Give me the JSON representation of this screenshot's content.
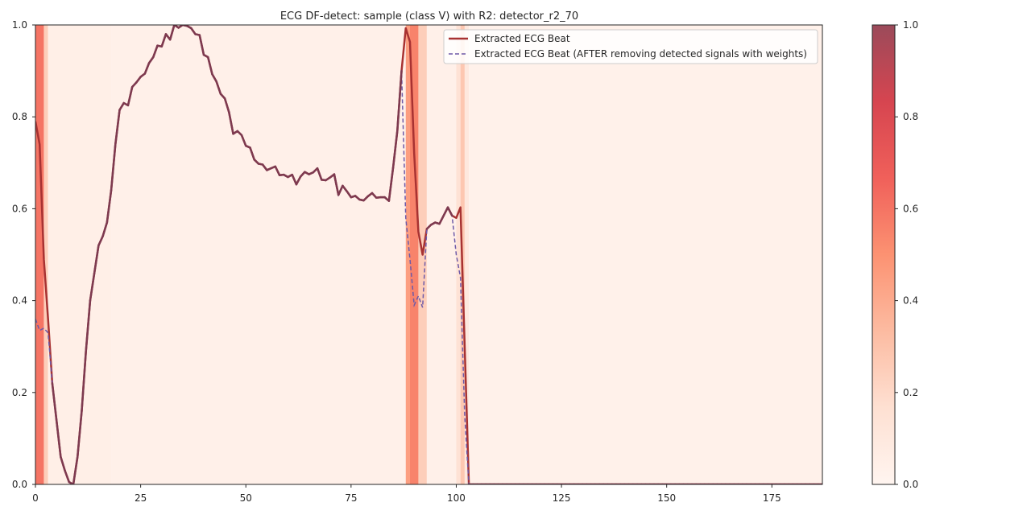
{
  "chart_data": {
    "type": "line",
    "title": "ECG DF-detect: sample (class V) with R2: detector_r2_70",
    "xlabel": "",
    "ylabel": "",
    "xlim": [
      0,
      187
    ],
    "ylim": [
      0,
      1.0
    ],
    "x_ticks": [
      0,
      25,
      50,
      75,
      100,
      125,
      150,
      175
    ],
    "y_ticks": [
      0.0,
      0.2,
      0.4,
      0.6,
      0.8,
      1.0
    ],
    "grid": false,
    "legend_position": "top-right",
    "colors": {
      "original": "#a83232",
      "removed": "#6e5aa8",
      "overlap": "#7d3a50"
    },
    "series": [
      {
        "name": "Extracted ECG Beat",
        "style": "solid",
        "values": [
          0.79,
          0.74,
          0.49,
          0.36,
          0.22,
          0.14,
          0.06,
          0.03,
          0.005,
          0.0,
          0.06,
          0.16,
          0.29,
          0.4,
          0.46,
          0.52,
          0.54,
          0.57,
          0.64,
          0.74,
          0.815,
          0.83,
          0.825,
          0.865,
          0.875,
          0.887,
          0.894,
          0.917,
          0.93,
          0.955,
          0.953,
          0.98,
          0.968,
          1.0,
          0.994,
          1.0,
          0.998,
          0.993,
          0.98,
          0.978,
          0.935,
          0.93,
          0.893,
          0.877,
          0.85,
          0.84,
          0.81,
          0.763,
          0.769,
          0.76,
          0.737,
          0.733,
          0.707,
          0.698,
          0.696,
          0.684,
          0.688,
          0.692,
          0.673,
          0.674,
          0.669,
          0.674,
          0.653,
          0.67,
          0.68,
          0.675,
          0.679,
          0.688,
          0.663,
          0.662,
          0.668,
          0.675,
          0.63,
          0.65,
          0.638,
          0.625,
          0.628,
          0.62,
          0.618,
          0.627,
          0.634,
          0.624,
          0.625,
          0.625,
          0.617,
          0.69,
          0.77,
          0.9,
          0.993,
          0.963,
          0.72,
          0.55,
          0.5,
          0.556,
          0.565,
          0.57,
          0.567,
          0.585,
          0.603,
          0.585,
          0.58,
          0.603,
          0.3,
          0.0,
          0.0,
          0.0,
          0.0,
          0.0,
          0.0,
          0.0,
          0.0,
          0.0,
          0.0,
          0.0,
          0.0,
          0.0,
          0.0,
          0.0,
          0.0,
          0.0,
          0.0,
          0.0,
          0.0,
          0.0,
          0.0,
          0.0,
          0.0,
          0.0,
          0.0,
          0.0,
          0.0,
          0.0,
          0.0,
          0.0,
          0.0,
          0.0,
          0.0,
          0.0,
          0.0,
          0.0,
          0.0,
          0.0,
          0.0,
          0.0,
          0.0,
          0.0,
          0.0,
          0.0,
          0.0,
          0.0,
          0.0,
          0.0,
          0.0,
          0.0,
          0.0,
          0.0,
          0.0,
          0.0,
          0.0,
          0.0,
          0.0,
          0.0,
          0.0,
          0.0,
          0.0,
          0.0,
          0.0,
          0.0,
          0.0,
          0.0,
          0.0,
          0.0,
          0.0,
          0.0,
          0.0,
          0.0,
          0.0,
          0.0,
          0.0,
          0.0,
          0.0,
          0.0,
          0.0,
          0.0,
          0.0,
          0.0,
          0.0,
          0.0,
          0.0,
          0.0,
          0.0,
          0.0,
          0.0
        ]
      },
      {
        "name": "Extracted ECG Beat (AFTER removing detected signals with weights)",
        "style": "dashed",
        "values": [
          0.36,
          0.335,
          0.34,
          0.33,
          0.22,
          0.14,
          0.06,
          0.03,
          0.005,
          0.0,
          0.06,
          0.16,
          0.29,
          0.4,
          0.46,
          0.52,
          0.54,
          0.57,
          0.64,
          0.74,
          0.815,
          0.83,
          0.825,
          0.865,
          0.875,
          0.887,
          0.894,
          0.917,
          0.93,
          0.955,
          0.953,
          0.98,
          0.968,
          1.0,
          0.994,
          1.0,
          0.998,
          0.993,
          0.98,
          0.978,
          0.935,
          0.93,
          0.893,
          0.877,
          0.85,
          0.84,
          0.81,
          0.763,
          0.769,
          0.76,
          0.737,
          0.733,
          0.707,
          0.698,
          0.696,
          0.684,
          0.688,
          0.692,
          0.673,
          0.674,
          0.669,
          0.674,
          0.653,
          0.67,
          0.68,
          0.675,
          0.679,
          0.688,
          0.663,
          0.662,
          0.668,
          0.675,
          0.63,
          0.65,
          0.638,
          0.625,
          0.628,
          0.62,
          0.618,
          0.627,
          0.634,
          0.624,
          0.625,
          0.625,
          0.617,
          0.69,
          0.77,
          0.9,
          0.58,
          0.49,
          0.39,
          0.41,
          0.385,
          0.556,
          0.565,
          0.57,
          0.567,
          0.585,
          0.603,
          0.585,
          0.5,
          0.45,
          0.15,
          0.0,
          0.0,
          0.0,
          0.0,
          0.0,
          0.0,
          0.0,
          0.0,
          0.0,
          0.0,
          0.0,
          0.0,
          0.0,
          0.0,
          0.0,
          0.0,
          0.0,
          0.0,
          0.0,
          0.0,
          0.0,
          0.0,
          0.0,
          0.0,
          0.0,
          0.0,
          0.0,
          0.0,
          0.0,
          0.0,
          0.0,
          0.0,
          0.0,
          0.0,
          0.0,
          0.0,
          0.0,
          0.0,
          0.0,
          0.0,
          0.0,
          0.0,
          0.0,
          0.0,
          0.0,
          0.0,
          0.0,
          0.0,
          0.0,
          0.0,
          0.0,
          0.0,
          0.0,
          0.0,
          0.0,
          0.0,
          0.0,
          0.0,
          0.0,
          0.0,
          0.0,
          0.0,
          0.0,
          0.0,
          0.0,
          0.0,
          0.0,
          0.0,
          0.0,
          0.0,
          0.0,
          0.0,
          0.0,
          0.0,
          0.0,
          0.0,
          0.0,
          0.0,
          0.0,
          0.0,
          0.0,
          0.0,
          0.0,
          0.0,
          0.0,
          0.0,
          0.0,
          0.0,
          0.0,
          0.0,
          0.0
        ]
      }
    ],
    "weights": {
      "segments": [
        [
          0,
          2,
          0.6
        ],
        [
          2,
          3,
          0.25
        ],
        [
          3,
          18,
          0.05
        ],
        [
          18,
          88,
          0.04
        ],
        [
          88,
          89,
          0.45
        ],
        [
          89,
          91,
          0.55
        ],
        [
          91,
          93,
          0.25
        ],
        [
          93,
          100,
          0.04
        ],
        [
          100,
          101,
          0.15
        ],
        [
          101,
          102,
          0.28
        ],
        [
          102,
          103,
          0.1
        ],
        [
          103,
          187,
          0.035
        ]
      ]
    },
    "colorbar": {
      "min": 0.0,
      "max": 1.0,
      "ticks": [
        0.0,
        0.2,
        0.4,
        0.6,
        0.8,
        1.0
      ],
      "stops": [
        "#fff5f0",
        "#fee0d2",
        "#fcbba1",
        "#fc9272",
        "#f0605a",
        "#d64550",
        "#9b4a5a"
      ]
    }
  }
}
